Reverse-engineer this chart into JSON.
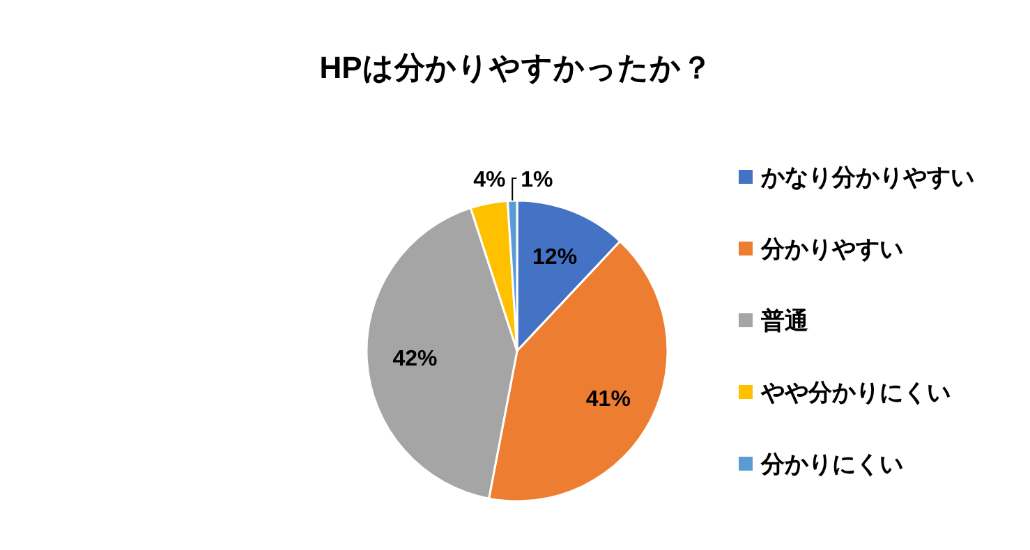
{
  "chart_data": {
    "type": "pie",
    "title": "HPは分かりやすかったか？",
    "categories": [
      "かなり分かりやすい",
      "分かりやすい",
      "普通",
      "やや分かりにくい",
      "分かりにくい"
    ],
    "values": [
      12,
      41,
      42,
      4,
      1
    ],
    "colors": [
      "#4472c4",
      "#ed7d31",
      "#a5a5a5",
      "#ffc000",
      "#5b9bd5"
    ],
    "value_labels": [
      "12%",
      "41%",
      "42%",
      "4%",
      "1%"
    ],
    "legend": "right"
  }
}
